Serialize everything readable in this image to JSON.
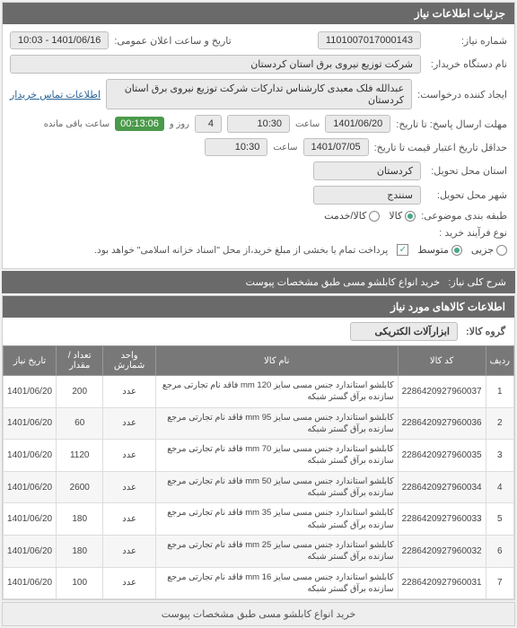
{
  "panel1": {
    "title": "جزئیات اطلاعات نیاز",
    "req_no_label": "شماره نیاز:",
    "req_no": "1101007017000143",
    "announce_label": "تاریخ و ساعت اعلان عمومی:",
    "announce": "1401/06/16 - 10:03",
    "buyer_label": "نام دستگاه خریدار:",
    "buyer": "شرکت توزیع نیروی برق استان کردستان",
    "creator_label": "ایجاد کننده درخواست:",
    "creator": "عبدالله فلک معبدی کارشناس تدارکات شرکت توزیع نیروی برق استان کردستان",
    "contact_link": "اطلاعات تماس خریدار",
    "deadline_label": "مهلت ارسال پاسخ: تا تاریخ:",
    "deadline_date": "1401/06/20",
    "time_label": "ساعت",
    "deadline_time": "10:30",
    "days_val": "4",
    "days_label": "روز و",
    "cd_time": "00:13:06",
    "cd_remaining": "ساعت باقی مانده",
    "validity_label": "حداقل تاریخ اعتبار قیمت تا تاریخ:",
    "validity_date": "1401/07/05",
    "validity_time": "10:30",
    "province_label": "استان محل تحویل:",
    "province": "کردستان",
    "city_label": "شهر محل تحویل:",
    "city": "سنندج",
    "category_label": "طبقه بندی موضوعی:",
    "cat_goods": "کالا",
    "cat_service": "کالا/خدمت",
    "process_label": "نوع فرآیند خرید :",
    "proc_low": "جزیی",
    "proc_mid": "متوسط",
    "proc_note": "پرداخت تمام یا بخشی از مبلغ خرید،از محل \"اسناد خزانه اسلامی\" خواهد بود."
  },
  "desc": {
    "label": "شرح کلی نیاز:",
    "text": "خرید انواع کابلشو مسی طبق مشخصات پیوست"
  },
  "goods": {
    "header": "اطلاعات کالاهای مورد نیاز",
    "group_label": "گروه کالا:",
    "group_value": "ابزارآلات الکتریکی",
    "columns": {
      "row": "ردیف",
      "code": "کد کالا",
      "name": "نام کالا",
      "unit": "واحد شمارش",
      "qty": "تعداد / مقدار",
      "date": "تاریخ نیاز"
    },
    "rows": [
      {
        "n": "1",
        "code": "2286420927960037",
        "name": "کابلشو استاندارد جنس مسی سایز 120 mm فاقد نام تجارتی مرجع سازنده برآق گستر شبکه",
        "unit": "عدد",
        "qty": "200",
        "date": "1401/06/20"
      },
      {
        "n": "2",
        "code": "2286420927960036",
        "name": "کابلشو استاندارد جنس مسی سایز 95 mm فاقد نام تجارتی مرجع سازنده برآق گستر شبکه",
        "unit": "عدد",
        "qty": "60",
        "date": "1401/06/20"
      },
      {
        "n": "3",
        "code": "2286420927960035",
        "name": "کابلشو استاندارد جنس مسی سایز 70 mm فاقد نام تجارتی مرجع سازنده برآق گستر شبکه",
        "unit": "عدد",
        "qty": "1120",
        "date": "1401/06/20"
      },
      {
        "n": "4",
        "code": "2286420927960034",
        "name": "کابلشو استاندارد جنس مسی سایز 50 mm فاقد نام تجارتی مرجع سازنده برآق گستر شبکه",
        "unit": "عدد",
        "qty": "2600",
        "date": "1401/06/20"
      },
      {
        "n": "5",
        "code": "2286420927960033",
        "name": "کابلشو استاندارد جنس مسی سایز 35 mm فاقد نام تجارتی مرجع سازنده برآق گستر شبکه",
        "unit": "عدد",
        "qty": "180",
        "date": "1401/06/20"
      },
      {
        "n": "6",
        "code": "2286420927960032",
        "name": "کابلشو استاندارد جنس مسی سایز 25 mm فاقد نام تجارتی مرجع سازنده برآق گستر شبکه",
        "unit": "عدد",
        "qty": "180",
        "date": "1401/06/20"
      },
      {
        "n": "7",
        "code": "2286420927960031",
        "name": "کابلشو استاندارد جنس مسی سایز 16 mm فاقد نام تجارتی مرجع سازنده برآق گستر شبکه",
        "unit": "عدد",
        "qty": "100",
        "date": "1401/06/20"
      }
    ]
  },
  "footer": "خرید انواع کابلشو مسی طبق مشخصات پیوست"
}
